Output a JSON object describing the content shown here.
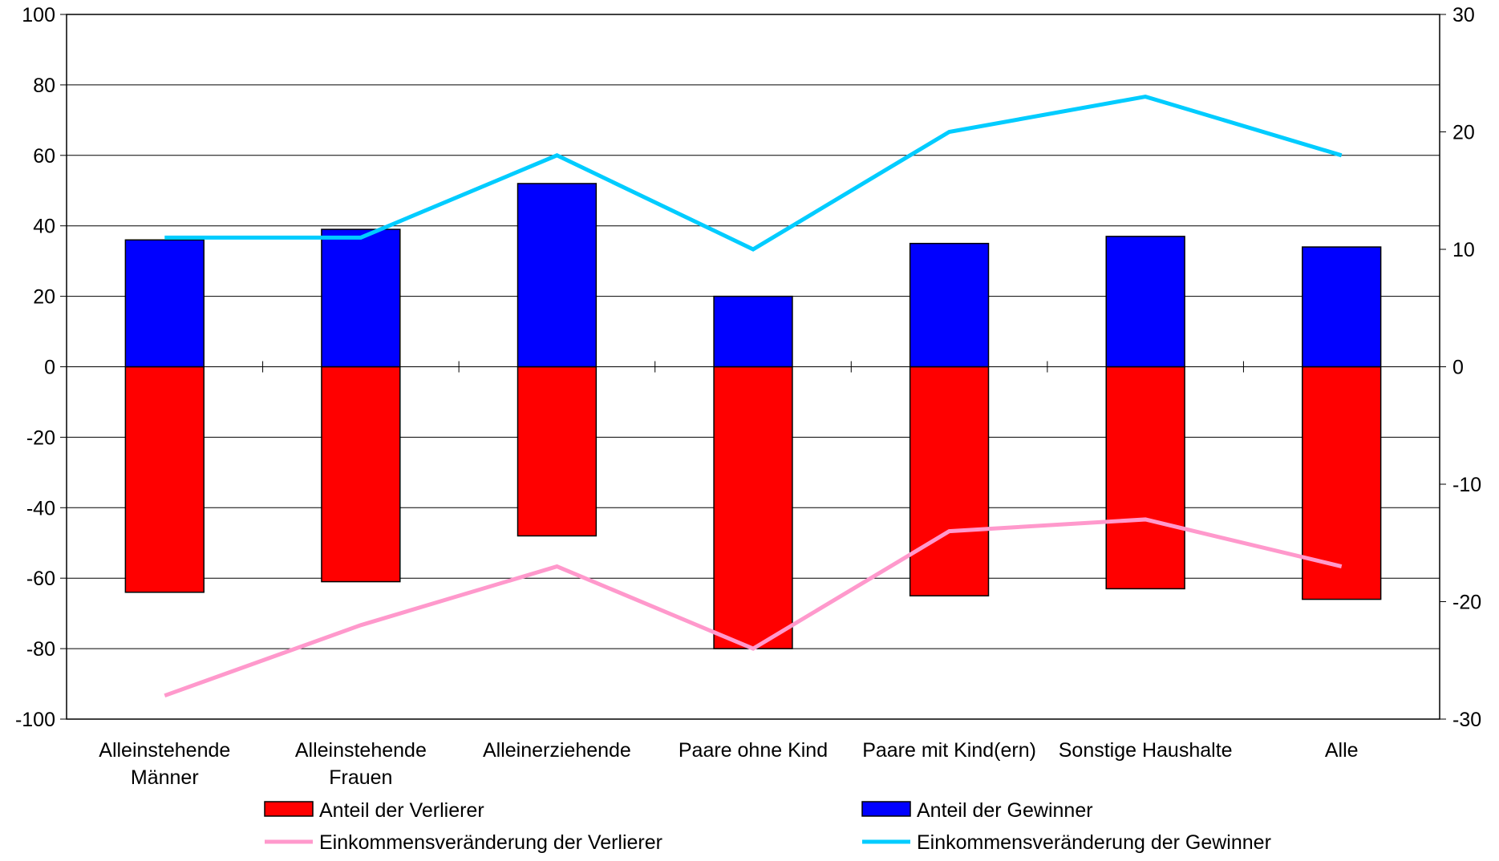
{
  "chart_data": {
    "type": "bar",
    "categories": [
      [
        "Alleinstehende",
        "Männer"
      ],
      [
        "Alleinstehende",
        "Frauen"
      ],
      [
        "Alleinerziehende"
      ],
      [
        "Paare ohne Kind"
      ],
      [
        "Paare mit Kind(ern)"
      ],
      [
        "Sonstige Haushalte"
      ],
      [
        "Alle"
      ]
    ],
    "left_axis": {
      "ylim": [
        -100,
        100
      ],
      "ticks": [
        100,
        80,
        60,
        40,
        20,
        0,
        -20,
        -40,
        -60,
        -80,
        -100
      ],
      "tick_labels": [
        "100",
        "80",
        "60",
        "40",
        "20",
        "0",
        "-20",
        "-40",
        "-60",
        "-80",
        "-100"
      ]
    },
    "right_axis": {
      "ylim": [
        -30,
        30
      ],
      "ticks": [
        30,
        20,
        10,
        0,
        -10,
        -20,
        -30
      ],
      "tick_labels": [
        "30",
        "20",
        "10",
        "0",
        "-10",
        "-20",
        "-30"
      ]
    },
    "grid": true,
    "series": [
      {
        "name": "Anteil der Verlierer",
        "kind": "bar",
        "axis": "left",
        "color": "#ff0000",
        "values": [
          -64,
          -61,
          -48,
          -80,
          -65,
          -63,
          -66
        ]
      },
      {
        "name": "Anteil der Gewinner",
        "kind": "bar",
        "axis": "left",
        "color": "#0000ff",
        "values": [
          36,
          39,
          52,
          20,
          35,
          37,
          34
        ]
      },
      {
        "name": "Einkommensveränderung der Verlierer",
        "kind": "line",
        "axis": "right",
        "color": "#ff99cc",
        "values": [
          -28,
          -22,
          -17,
          -24,
          -14,
          -13,
          -17
        ]
      },
      {
        "name": "Einkommensveränderung der Gewinner",
        "kind": "line",
        "axis": "right",
        "color": "#00ccff",
        "values": [
          11,
          11,
          18,
          10,
          20,
          23,
          18
        ]
      }
    ],
    "legend_placement": "bottom"
  }
}
